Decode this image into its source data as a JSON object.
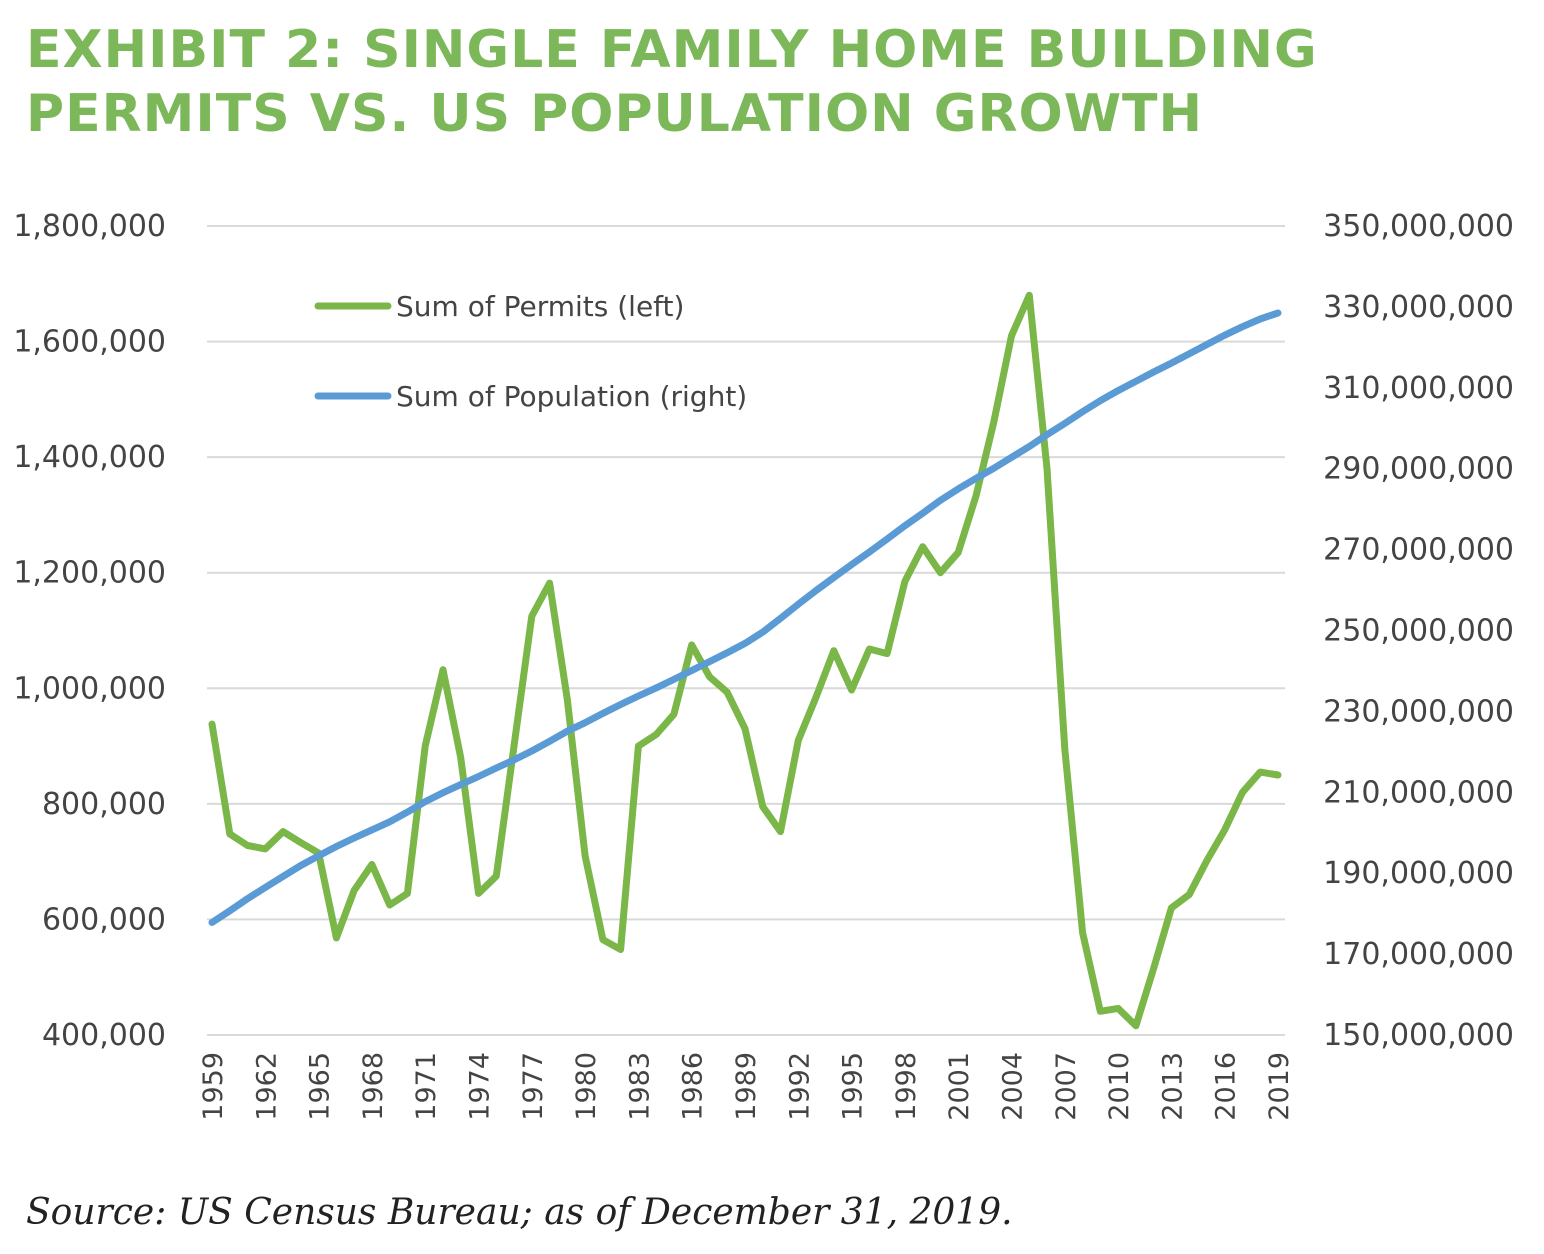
{
  "title": {
    "line1": "EXHIBIT 2: SINGLE FAMILY HOME BUILDING",
    "line2": "PERMITS VS. US POPULATION GROWTH"
  },
  "source": "Source: US Census Bureau; as of December 31, 2019.",
  "colors": {
    "title": "#7cb85a",
    "permits": "#7ab648",
    "population": "#5b9bd5",
    "grid": "#d9d9d9"
  },
  "chart_data": {
    "type": "line",
    "title": "EXHIBIT 2: SINGLE FAMILY HOME BUILDING PERMITS VS. US POPULATION GROWTH",
    "x_start": 1959,
    "x_end": 2019,
    "x_ticks": [
      "1959",
      "1962",
      "1965",
      "1968",
      "1971",
      "1974",
      "1977",
      "1980",
      "1983",
      "1986",
      "1989",
      "1992",
      "1995",
      "1998",
      "2001",
      "2004",
      "2007",
      "2010",
      "2013",
      "2016",
      "2019"
    ],
    "left_axis": {
      "range": [
        400000,
        1800000
      ],
      "ticks": [
        "400,000",
        "600,000",
        "800,000",
        "1,000,000",
        "1,200,000",
        "1,400,000",
        "1,600,000",
        "1,800,000"
      ]
    },
    "right_axis": {
      "range": [
        150000000,
        350000000
      ],
      "ticks": [
        "150,000,000",
        "170,000,000",
        "190,000,000",
        "210,000,000",
        "230,000,000",
        "250,000,000",
        "270,000,000",
        "290,000,000",
        "310,000,000",
        "330,000,000",
        "350,000,000"
      ]
    },
    "grid": true,
    "legend_position": "top-left",
    "series": [
      {
        "name": "Sum of Permits (left)",
        "axis": "left",
        "color": "#7ab648",
        "values": [
          938000,
          748000,
          728000,
          722000,
          752000,
          733000,
          715000,
          568000,
          650000,
          695000,
          625000,
          645000,
          900000,
          1032000,
          880000,
          645000,
          675000,
          900000,
          1125000,
          1182000,
          981000,
          710000,
          565000,
          548000,
          900000,
          920000,
          955000,
          1075000,
          1020000,
          993000,
          930000,
          795000,
          752000,
          910000,
          985000,
          1065000,
          997000,
          1068000,
          1060000,
          1185000,
          1245000,
          1200000,
          1235000,
          1333000,
          1460000,
          1610000,
          1680000,
          1380000,
          895000,
          577000,
          441000,
          446000,
          416000,
          515000,
          620000,
          643000,
          702000,
          755000,
          820000,
          855000,
          850000
        ]
      },
      {
        "name": "Sum of Population (right)",
        "axis": "right",
        "color": "#5b9bd5",
        "values": [
          177800000,
          180700000,
          183700000,
          186500000,
          189200000,
          191900000,
          194300000,
          196600000,
          198700000,
          200700000,
          202700000,
          205100000,
          207700000,
          209900000,
          211900000,
          213900000,
          216000000,
          218000000,
          220200000,
          222600000,
          225100000,
          227200000,
          229500000,
          231700000,
          233800000,
          235800000,
          237900000,
          240100000,
          242300000,
          244500000,
          246800000,
          249600000,
          253000000,
          256500000,
          259900000,
          263100000,
          266300000,
          269400000,
          272600000,
          275900000,
          279000000,
          282200000,
          285000000,
          287600000,
          290100000,
          292800000,
          295500000,
          298400000,
          301200000,
          304100000,
          306800000,
          309300000,
          311600000,
          313900000,
          316100000,
          318400000,
          320700000,
          323000000,
          325100000,
          327000000,
          328500000
        ]
      }
    ]
  }
}
